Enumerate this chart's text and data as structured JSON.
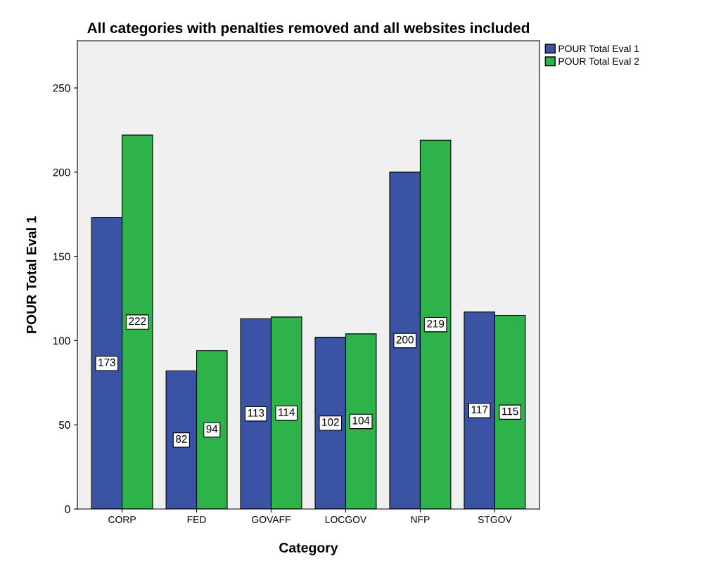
{
  "chart_data": {
    "type": "bar",
    "title": "All categories with penalties removed and all websites included",
    "xlabel": "Category",
    "ylabel": "POUR Total Eval 1",
    "categories": [
      "CORP",
      "FED",
      "GOVAFF",
      "LOCGOV",
      "NFP",
      "STGOV"
    ],
    "series": [
      {
        "name": "POUR Total Eval 1",
        "color": "#3a53a4",
        "values": [
          173,
          82,
          113,
          102,
          200,
          117
        ]
      },
      {
        "name": "POUR Total Eval 2",
        "color": "#2db34a",
        "values": [
          222,
          94,
          114,
          104,
          219,
          115
        ]
      }
    ],
    "ylim": [
      0,
      278
    ],
    "yticks": [
      0,
      50,
      100,
      150,
      200,
      250
    ],
    "data_labels": true,
    "legend": "top right",
    "grid": false
  }
}
